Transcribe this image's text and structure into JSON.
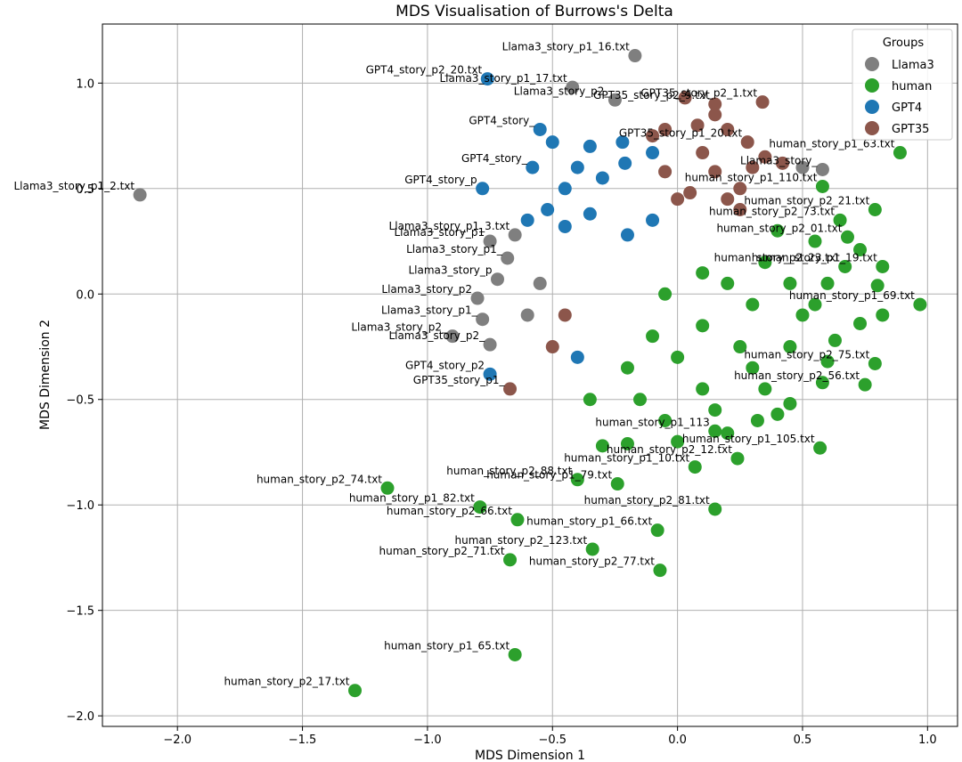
{
  "chart_data": {
    "type": "scatter",
    "title": "MDS Visualisation of Burrows's Delta",
    "xlabel": "MDS Dimension 1",
    "ylabel": "MDS Dimension 2",
    "xlim": [
      -2.3,
      1.12
    ],
    "ylim": [
      -2.05,
      1.28
    ],
    "xticks": [
      -2.0,
      -1.5,
      -1.0,
      -0.5,
      0.0,
      0.5,
      1.0
    ],
    "xtick_labels": [
      "−2.0",
      "−1.5",
      "−1.0",
      "−0.5",
      "0.0",
      "0.5",
      "1.0"
    ],
    "yticks": [
      -2.0,
      -1.5,
      -1.0,
      -0.5,
      0.0,
      0.5,
      1.0
    ],
    "ytick_labels": [
      "−2.0",
      "−1.5",
      "−1.0",
      "−0.5",
      "0.0",
      "0.5",
      "1.0"
    ],
    "grid": true,
    "legend": {
      "title": "Groups",
      "placement": "top-right"
    },
    "series": [
      {
        "name": "Llama3",
        "color": "#7f7f7f",
        "points": [
          {
            "x": -2.15,
            "y": 0.47,
            "label": "Llama3_story_p1_2.txt"
          },
          {
            "x": -0.17,
            "y": 1.13,
            "label": "Llama3_story_p1_16.txt"
          },
          {
            "x": -0.42,
            "y": 0.98,
            "label": "Llama3_story_p1_17.txt"
          },
          {
            "x": -0.25,
            "y": 0.92,
            "label": "Llama3_story_p2_"
          },
          {
            "x": 0.58,
            "y": 0.59,
            "label": "Llama3_story_"
          },
          {
            "x": -0.65,
            "y": 0.28,
            "label": "Llama3_story_p1_3.txt"
          },
          {
            "x": -0.75,
            "y": 0.25,
            "label": "Llama3_story_p1"
          },
          {
            "x": -0.68,
            "y": 0.17,
            "label": "Llama3_story_p1_"
          },
          {
            "x": -0.72,
            "y": 0.07,
            "label": "Llama3_story_p"
          },
          {
            "x": -0.8,
            "y": -0.02,
            "label": "Llama3_story_p2"
          },
          {
            "x": -0.78,
            "y": -0.12,
            "label": "Llama3_story_p1_"
          },
          {
            "x": -0.9,
            "y": -0.2,
            "label": "Llama3_story_p2_"
          },
          {
            "x": -0.75,
            "y": -0.24,
            "label": "Llama3_story_p2_"
          },
          {
            "x": -0.55,
            "y": 0.05,
            "label": ""
          },
          {
            "x": -0.6,
            "y": -0.1,
            "label": ""
          },
          {
            "x": 0.5,
            "y": 0.6,
            "label": ""
          }
        ]
      },
      {
        "name": "human",
        "color": "#2ca02c",
        "points": [
          {
            "x": -1.29,
            "y": -1.88,
            "label": "human_story_p2_17.txt"
          },
          {
            "x": -0.65,
            "y": -1.71,
            "label": "human_story_p1_65.txt"
          },
          {
            "x": -1.16,
            "y": -0.92,
            "label": "human_story_p2_74.txt"
          },
          {
            "x": -0.79,
            "y": -1.01,
            "label": "human_story_p1_82.txt"
          },
          {
            "x": -0.64,
            "y": -1.07,
            "label": "human_story_p2_66.txt"
          },
          {
            "x": -0.08,
            "y": -1.12,
            "label": "human_story_p1_66.txt"
          },
          {
            "x": -0.34,
            "y": -1.21,
            "label": "human_story_p2_123.txt"
          },
          {
            "x": -0.67,
            "y": -1.26,
            "label": "human_story_p2_71.txt"
          },
          {
            "x": -0.07,
            "y": -1.31,
            "label": "human_story_p2_77.txt"
          },
          {
            "x": 0.15,
            "y": -1.02,
            "label": "human_story_p2_81.txt"
          },
          {
            "x": -0.4,
            "y": -0.88,
            "label": "human_story_p2_88.txt"
          },
          {
            "x": -0.24,
            "y": -0.9,
            "label": "human_story_p1_79.txt"
          },
          {
            "x": 0.07,
            "y": -0.82,
            "label": "human_story_p1_10.txt"
          },
          {
            "x": 0.24,
            "y": -0.78,
            "label": "human_story_p2_12.txt"
          },
          {
            "x": 0.57,
            "y": -0.73,
            "label": "human_story_p1_105.txt"
          },
          {
            "x": 0.15,
            "y": -0.65,
            "label": "human_story_p1_113"
          },
          {
            "x": 0.89,
            "y": 0.67,
            "label": "human_story_p1_63.txt"
          },
          {
            "x": 0.97,
            "y": -0.05,
            "label": "human_story_p1_69.txt"
          },
          {
            "x": 0.79,
            "y": 0.4,
            "label": "human_story_p2_21.txt"
          },
          {
            "x": 0.82,
            "y": 0.13,
            "label": "human_story_p1_19.txt"
          },
          {
            "x": 0.79,
            "y": -0.33,
            "label": "human_story_p2_75.txt"
          },
          {
            "x": 0.75,
            "y": -0.43,
            "label": "human_story_p2_56.txt"
          },
          {
            "x": 0.58,
            "y": 0.51,
            "label": "human_story_p1_110.txt"
          },
          {
            "x": 0.65,
            "y": 0.35,
            "label": "human_story_p2_73.txt"
          },
          {
            "x": 0.68,
            "y": 0.27,
            "label": "human_story_p2_01.txt"
          },
          {
            "x": 0.73,
            "y": 0.21,
            "label": ""
          },
          {
            "x": 0.67,
            "y": 0.13,
            "label": "human_story_p2_23.txt"
          },
          {
            "x": 0.8,
            "y": 0.04,
            "label": ""
          },
          {
            "x": 0.82,
            "y": -0.1,
            "label": ""
          },
          {
            "x": 0.73,
            "y": -0.14,
            "label": ""
          },
          {
            "x": 0.63,
            "y": -0.22,
            "label": ""
          },
          {
            "x": 0.6,
            "y": -0.32,
            "label": ""
          },
          {
            "x": 0.58,
            "y": -0.42,
            "label": ""
          },
          {
            "x": 0.45,
            "y": -0.52,
            "label": ""
          },
          {
            "x": 0.4,
            "y": -0.57,
            "label": ""
          },
          {
            "x": 0.32,
            "y": -0.6,
            "label": ""
          },
          {
            "x": 0.2,
            "y": -0.66,
            "label": ""
          },
          {
            "x": 0.0,
            "y": -0.7,
            "label": ""
          },
          {
            "x": -0.2,
            "y": -0.71,
            "label": ""
          },
          {
            "x": -0.3,
            "y": -0.72,
            "label": ""
          },
          {
            "x": -0.35,
            "y": -0.5,
            "label": ""
          },
          {
            "x": -0.15,
            "y": -0.5,
            "label": ""
          },
          {
            "x": 0.1,
            "y": -0.45,
            "label": ""
          },
          {
            "x": 0.3,
            "y": -0.35,
            "label": ""
          },
          {
            "x": 0.45,
            "y": -0.25,
            "label": ""
          },
          {
            "x": 0.5,
            "y": -0.1,
            "label": ""
          },
          {
            "x": 0.45,
            "y": 0.05,
            "label": ""
          },
          {
            "x": 0.35,
            "y": 0.15,
            "label": ""
          },
          {
            "x": 0.3,
            "y": -0.05,
            "label": ""
          },
          {
            "x": 0.2,
            "y": 0.05,
            "label": ""
          },
          {
            "x": 0.1,
            "y": -0.15,
            "label": ""
          },
          {
            "x": 0.0,
            "y": -0.3,
            "label": ""
          },
          {
            "x": -0.1,
            "y": -0.2,
            "label": ""
          },
          {
            "x": -0.2,
            "y": -0.35,
            "label": ""
          },
          {
            "x": 0.25,
            "y": -0.25,
            "label": ""
          },
          {
            "x": 0.55,
            "y": 0.25,
            "label": ""
          },
          {
            "x": 0.4,
            "y": 0.3,
            "label": ""
          },
          {
            "x": 0.6,
            "y": 0.05,
            "label": ""
          },
          {
            "x": 0.1,
            "y": 0.1,
            "label": ""
          },
          {
            "x": -0.05,
            "y": 0.0,
            "label": ""
          },
          {
            "x": 0.15,
            "y": -0.55,
            "label": ""
          },
          {
            "x": -0.05,
            "y": -0.6,
            "label": ""
          },
          {
            "x": 0.35,
            "y": -0.45,
            "label": ""
          },
          {
            "x": 0.55,
            "y": -0.05,
            "label": ""
          }
        ]
      },
      {
        "name": "GPT4",
        "color": "#1f77b4",
        "points": [
          {
            "x": -0.76,
            "y": 1.02,
            "label": "GPT4_story_p2_20.txt"
          },
          {
            "x": -0.55,
            "y": 0.78,
            "label": "GPT4_story_"
          },
          {
            "x": -0.58,
            "y": 0.6,
            "label": "GPT4_story_"
          },
          {
            "x": -0.78,
            "y": 0.5,
            "label": "GPT4_story_p"
          },
          {
            "x": -0.5,
            "y": 0.72,
            "label": ""
          },
          {
            "x": -0.35,
            "y": 0.7,
            "label": ""
          },
          {
            "x": -0.22,
            "y": 0.72,
            "label": ""
          },
          {
            "x": -0.1,
            "y": 0.67,
            "label": ""
          },
          {
            "x": -0.4,
            "y": 0.6,
            "label": ""
          },
          {
            "x": -0.45,
            "y": 0.5,
            "label": ""
          },
          {
            "x": -0.3,
            "y": 0.55,
            "label": ""
          },
          {
            "x": -0.52,
            "y": 0.4,
            "label": ""
          },
          {
            "x": -0.6,
            "y": 0.35,
            "label": ""
          },
          {
            "x": -0.45,
            "y": 0.32,
            "label": ""
          },
          {
            "x": -0.35,
            "y": 0.38,
            "label": ""
          },
          {
            "x": -0.2,
            "y": 0.28,
            "label": ""
          },
          {
            "x": -0.1,
            "y": 0.35,
            "label": ""
          },
          {
            "x": -0.21,
            "y": 0.62,
            "label": ""
          },
          {
            "x": -0.75,
            "y": -0.38,
            "label": "GPT4_story_p2"
          },
          {
            "x": -0.4,
            "y": -0.3,
            "label": ""
          }
        ]
      },
      {
        "name": "GPT35",
        "color": "#8c564b",
        "points": [
          {
            "x": 0.34,
            "y": 0.91,
            "label": "GPT35_story_p2_1.txt"
          },
          {
            "x": 0.15,
            "y": 0.9,
            "label": "GPT35_story_p2_9.txt"
          },
          {
            "x": 0.03,
            "y": 0.93,
            "label": ""
          },
          {
            "x": 0.15,
            "y": 0.85,
            "label": ""
          },
          {
            "x": 0.08,
            "y": 0.8,
            "label": ""
          },
          {
            "x": -0.05,
            "y": 0.78,
            "label": ""
          },
          {
            "x": -0.1,
            "y": 0.75,
            "label": ""
          },
          {
            "x": 0.2,
            "y": 0.78,
            "label": ""
          },
          {
            "x": 0.28,
            "y": 0.72,
            "label": "GPT35_story_p1_20.txt"
          },
          {
            "x": 0.35,
            "y": 0.65,
            "label": ""
          },
          {
            "x": 0.42,
            "y": 0.62,
            "label": ""
          },
          {
            "x": 0.3,
            "y": 0.6,
            "label": ""
          },
          {
            "x": 0.15,
            "y": 0.58,
            "label": ""
          },
          {
            "x": 0.25,
            "y": 0.5,
            "label": ""
          },
          {
            "x": 0.2,
            "y": 0.45,
            "label": ""
          },
          {
            "x": 0.05,
            "y": 0.48,
            "label": ""
          },
          {
            "x": 0.0,
            "y": 0.45,
            "label": ""
          },
          {
            "x": 0.25,
            "y": 0.4,
            "label": ""
          },
          {
            "x": -0.05,
            "y": 0.58,
            "label": ""
          },
          {
            "x": 0.1,
            "y": 0.67,
            "label": ""
          },
          {
            "x": -0.67,
            "y": -0.45,
            "label": "GPT35_story_p1_"
          },
          {
            "x": -0.5,
            "y": -0.25,
            "label": ""
          },
          {
            "x": -0.45,
            "y": -0.1,
            "label": ""
          }
        ]
      }
    ]
  }
}
